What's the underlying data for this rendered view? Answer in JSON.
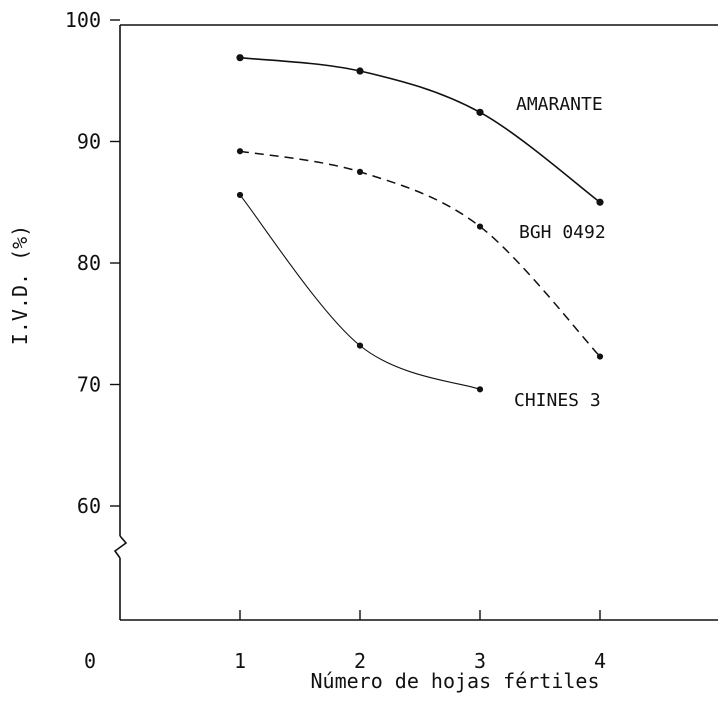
{
  "chart_data": {
    "type": "line",
    "title": "",
    "xlabel": "Número de hojas fértiles",
    "ylabel": "I.V.D. (%)",
    "x": [
      1,
      2,
      3,
      4
    ],
    "x_tick_labels": [
      "0",
      "1",
      "2",
      "3",
      "4"
    ],
    "y_tick_labels": [
      "60",
      "70",
      "80",
      "90",
      "100"
    ],
    "ylim": [
      50,
      100
    ],
    "y_axis_break": true,
    "grid": false,
    "legend": "none (series labelled directly on the curves)",
    "series": [
      {
        "name": "AMARANTE",
        "line_style": "solid",
        "x": [
          1,
          2,
          3,
          4
        ],
        "values": [
          96.9,
          95.8,
          92.4,
          85.0
        ]
      },
      {
        "name": "BGH 0492",
        "line_style": "dashed",
        "x": [
          1,
          2,
          3,
          4
        ],
        "values": [
          89.2,
          87.5,
          83.0,
          72.3
        ]
      },
      {
        "name": "CHINES 3",
        "line_style": "solid-thin",
        "x": [
          1,
          2,
          3
        ],
        "values": [
          85.6,
          73.2,
          69.6
        ]
      }
    ],
    "colors": {
      "ink": "#111111",
      "background": "#ffffff"
    }
  }
}
